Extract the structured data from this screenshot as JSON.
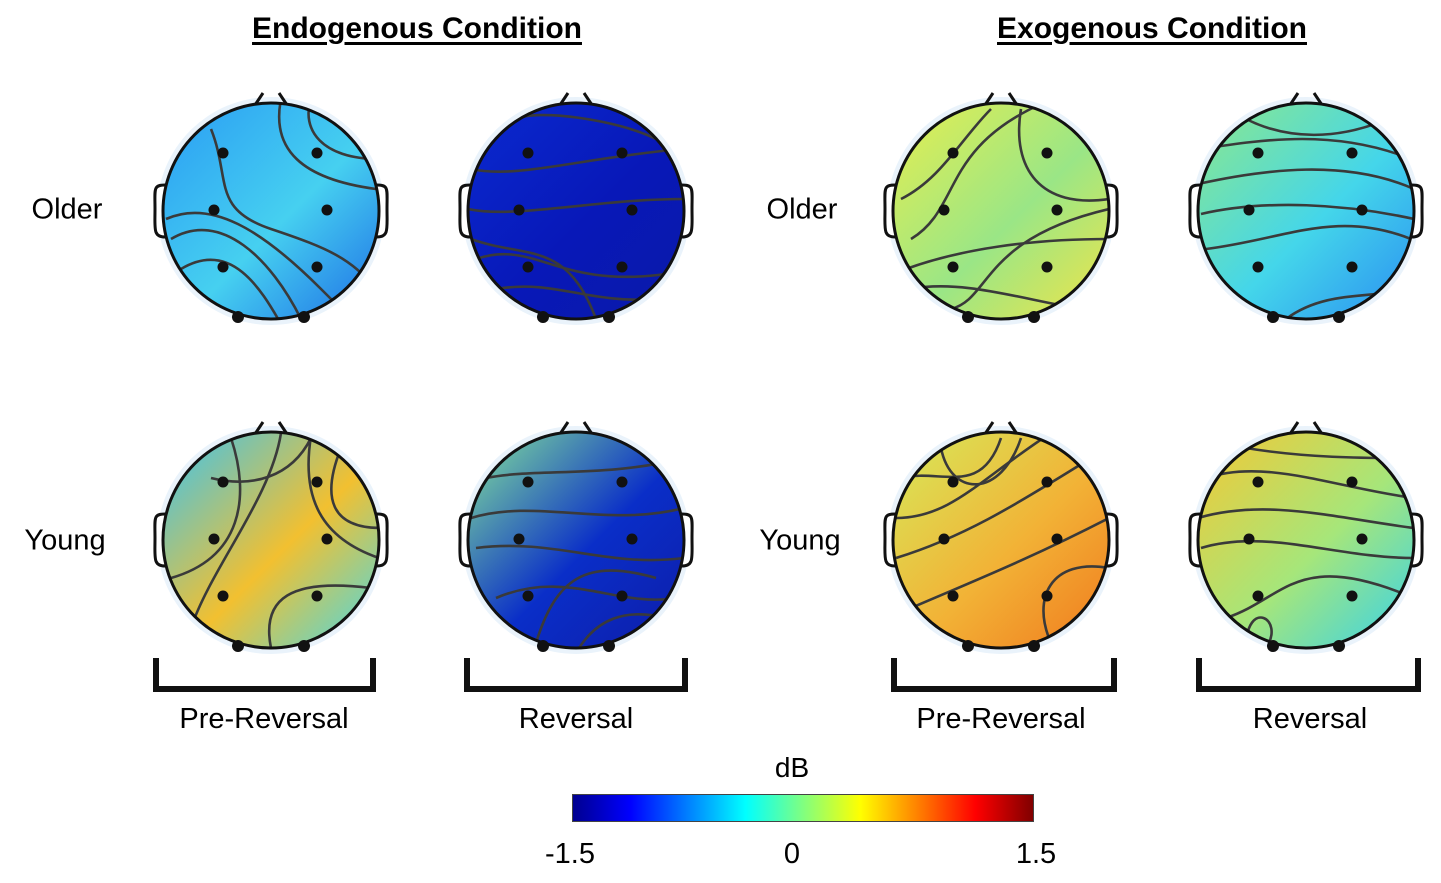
{
  "chart_data": {
    "type": "heatmap",
    "description_units": "dB",
    "conditions": [
      {
        "title": "Endogenous Condition"
      },
      {
        "title": "Exogenous Condition"
      }
    ],
    "groups": [
      "Older",
      "Young"
    ],
    "phases": [
      "Pre-Reversal",
      "Reversal"
    ],
    "colorbar": {
      "label": "dB",
      "min": -1.5,
      "max": 1.5,
      "ticks": [
        "-1.5",
        "0",
        "1.5"
      ],
      "colormap": [
        "#00008f",
        "#0000ff",
        "#0080ff",
        "#00ffff",
        "#80ff80",
        "#ffff00",
        "#ff8000",
        "#ff0000",
        "#800000"
      ]
    },
    "maps": [
      {
        "condition": "Endogenous Condition",
        "group": "Older",
        "phase": "Pre-Reversal",
        "mean_dB": -0.55,
        "colors": [
          "#2a9cf4",
          "#46d0f0",
          "#1e6ee6"
        ]
      },
      {
        "condition": "Endogenous Condition",
        "group": "Older",
        "phase": "Reversal",
        "mean_dB": -1.35,
        "colors": [
          "#0a2ad0",
          "#0818b8",
          "#0a1aa8"
        ]
      },
      {
        "condition": "Endogenous Condition",
        "group": "Young",
        "phase": "Pre-Reversal",
        "mean_dB": -0.2,
        "colors": [
          "#3ac4f2",
          "#f2c030",
          "#48d8e8"
        ]
      },
      {
        "condition": "Endogenous Condition",
        "group": "Young",
        "phase": "Reversal",
        "mean_dB": -0.6,
        "colors": [
          "#86e69a",
          "#0a2ec8",
          "#0e1da8"
        ]
      },
      {
        "condition": "Exogenous Condition",
        "group": "Older",
        "phase": "Pre-Reversal",
        "mean_dB": 0.3,
        "colors": [
          "#e6ee50",
          "#9ae686",
          "#f0e448"
        ]
      },
      {
        "condition": "Exogenous Condition",
        "group": "Older",
        "phase": "Reversal",
        "mean_dB": -0.5,
        "colors": [
          "#8ee88a",
          "#44d6ea",
          "#2a8ef2"
        ]
      },
      {
        "condition": "Exogenous Condition",
        "group": "Young",
        "phase": "Pre-Reversal",
        "mean_dB": 0.8,
        "colors": [
          "#d6ea5a",
          "#f2b236",
          "#f07a1e"
        ]
      },
      {
        "condition": "Exogenous Condition",
        "group": "Young",
        "phase": "Reversal",
        "mean_dB": 0.2,
        "colors": [
          "#f4c834",
          "#a6e67a",
          "#36d2ec"
        ]
      }
    ]
  }
}
